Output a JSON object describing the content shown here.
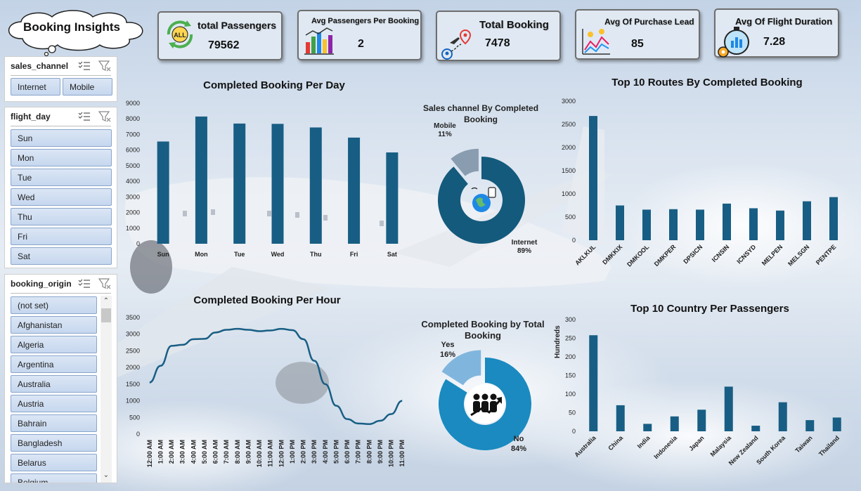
{
  "title": "Booking Insights",
  "kpis": [
    {
      "label": "total Passengers",
      "value": "79562",
      "icon": "all-passengers-icon"
    },
    {
      "label": "Avg Passengers Per Booking",
      "value": "2",
      "icon": "bar-chart-icon"
    },
    {
      "label": "Total Booking",
      "value": "7478",
      "icon": "flight-route-icon"
    },
    {
      "label": "Avg Of Purchase Lead",
      "value": "85",
      "icon": "line-chart-money-icon"
    },
    {
      "label": "Avg Of Flight Duration",
      "value": "7.28",
      "icon": "stopwatch-chart-icon"
    }
  ],
  "slicers": {
    "sales_channel": {
      "header": "sales_channel",
      "items": [
        "Internet",
        "Mobile"
      ]
    },
    "flight_day": {
      "header": "flight_day",
      "items": [
        "Sun",
        "Mon",
        "Tue",
        "Wed",
        "Thu",
        "Fri",
        "Sat"
      ]
    },
    "booking_origin": {
      "header": "booking_origin",
      "items": [
        "(not set)",
        "Afghanistan",
        "Algeria",
        "Argentina",
        "Australia",
        "Austria",
        "Bahrain",
        "Bangladesh",
        "Belarus",
        "Belgium"
      ]
    }
  },
  "colors": {
    "bar": "#185e84",
    "donut_main": "#145a7c",
    "donut_light": "#8a9db0",
    "donut2_main": "#1a8ac0",
    "donut2_light": "#80b6de"
  },
  "chart_data": [
    {
      "id": "per-day",
      "type": "bar",
      "title": "Completed Booking Per Day",
      "categories": [
        "Sun",
        "Mon",
        "Tue",
        "Wed",
        "Thu",
        "Fri",
        "Sat"
      ],
      "values": [
        6550,
        8150,
        7700,
        7680,
        7450,
        6800,
        5850
      ],
      "yticks": [
        "0",
        "1000",
        "2000",
        "3000",
        "4000",
        "5000",
        "6000",
        "7000",
        "8000",
        "9000"
      ],
      "ylim": [
        0,
        9000
      ]
    },
    {
      "id": "sales-channel",
      "type": "pie",
      "title": "Sales channel By Completed Booking",
      "slices": [
        {
          "label": "Internet",
          "pct": "89%",
          "value": 89
        },
        {
          "label": "Mobile",
          "pct": "11%",
          "value": 11
        }
      ]
    },
    {
      "id": "top-routes",
      "type": "bar",
      "title": "Top 10 Routes By Completed Booking",
      "categories": [
        "AKLKUL",
        "DMKKIX",
        "DMKOOL",
        "DMKPER",
        "DPSICN",
        "ICNSIN",
        "ICNSYD",
        "MELPEN",
        "MELSGN",
        "PENTPE"
      ],
      "values": [
        2680,
        750,
        660,
        670,
        660,
        790,
        690,
        640,
        840,
        930
      ],
      "yticks": [
        "0",
        "500",
        "1000",
        "1500",
        "2000",
        "2500",
        "3000"
      ],
      "ylim": [
        0,
        3000
      ]
    },
    {
      "id": "per-hour",
      "type": "line",
      "title": "Completed Booking Per Hour",
      "categories": [
        "12:00 AM",
        "1:00 AM",
        "2:00 AM",
        "3:00 AM",
        "4:00 AM",
        "5:00 AM",
        "6:00 AM",
        "7:00 AM",
        "8:00 AM",
        "9:00 AM",
        "10:00 AM",
        "11:00 AM",
        "12:00 PM",
        "1:00 PM",
        "2:00 PM",
        "3:00 PM",
        "4:00 PM",
        "5:00 PM",
        "6:00 PM",
        "7:00 PM",
        "8:00 PM",
        "9:00 PM",
        "10:00 PM",
        "11:00 PM"
      ],
      "values": [
        1550,
        2050,
        2650,
        2680,
        2850,
        2860,
        3050,
        3130,
        3160,
        3130,
        3090,
        3110,
        3160,
        3120,
        2850,
        2200,
        1500,
        850,
        450,
        320,
        300,
        400,
        600,
        1000
      ],
      "yticks": [
        "0",
        "500",
        "1000",
        "1500",
        "2000",
        "2500",
        "3000",
        "3500"
      ],
      "ylim": [
        0,
        3500
      ]
    },
    {
      "id": "by-total",
      "type": "pie",
      "title": "Completed Booking by Total Booking",
      "slices": [
        {
          "label": "No",
          "pct": "84%",
          "value": 84
        },
        {
          "label": "Yes",
          "pct": "16%",
          "value": 16
        }
      ]
    },
    {
      "id": "top-country",
      "type": "bar",
      "title": "Top 10 Country Per Passengers",
      "ylabel": "Hundreds",
      "categories": [
        "Australia",
        "China",
        "India",
        "Indonesia",
        "Japan",
        "Malaysia",
        "New Zealand",
        "South Korea",
        "Taiwan",
        "Thailand"
      ],
      "values": [
        258,
        70,
        20,
        40,
        58,
        120,
        15,
        78,
        30,
        37
      ],
      "yticks": [
        "0",
        "50",
        "100",
        "150",
        "200",
        "250",
        "300"
      ],
      "ylim": [
        0,
        300
      ]
    }
  ]
}
